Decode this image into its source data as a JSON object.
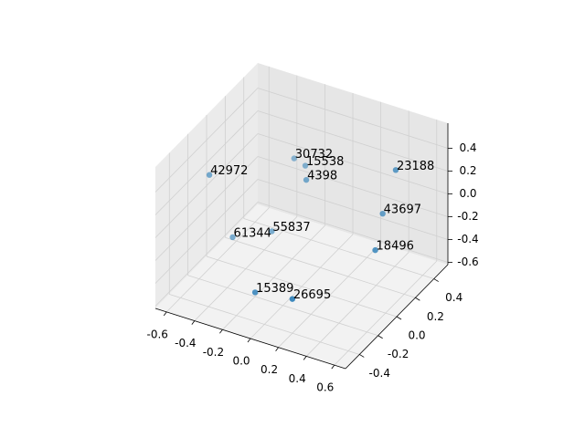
{
  "chart_data": {
    "type": "scatter3d",
    "x": [
      -0.6,
      -0.3,
      -0.2,
      -0.1,
      0.5,
      0.4,
      0.5,
      -0.3,
      -0.5,
      -0.1,
      0.2
    ],
    "y": [
      -0.09,
      0.37,
      0.34,
      0.2,
      0.26,
      0.27,
      0.04,
      0.13,
      0.01,
      -0.35,
      -0.4
    ],
    "z": [
      0.2,
      0.08,
      0.08,
      0.11,
      0.38,
      -0.05,
      -0.14,
      -0.36,
      -0.39,
      -0.42,
      -0.32
    ],
    "labels": [
      "42972",
      "30732",
      "15538",
      "4398",
      "23188",
      "43697",
      "18496",
      "55837",
      "61344",
      "15389",
      "26695"
    ],
    "color": "#1f77b4",
    "xlim": [
      -0.68,
      0.68
    ],
    "ylim": [
      -0.55,
      0.55
    ],
    "zlim": [
      -0.62,
      0.62
    ],
    "xticks": [
      -0.6,
      -0.4,
      -0.2,
      {
        "value": 0,
        "label": "0.0"
      },
      0.2,
      0.4,
      0.6
    ],
    "yticks": [
      -0.4,
      -0.2,
      {
        "value": 0,
        "label": "0.0"
      },
      0.2,
      0.4
    ],
    "zticks": [
      -0.6,
      -0.4,
      -0.2,
      {
        "value": 0,
        "label": "0.0"
      },
      0.2,
      0.4
    ],
    "grid": true
  }
}
